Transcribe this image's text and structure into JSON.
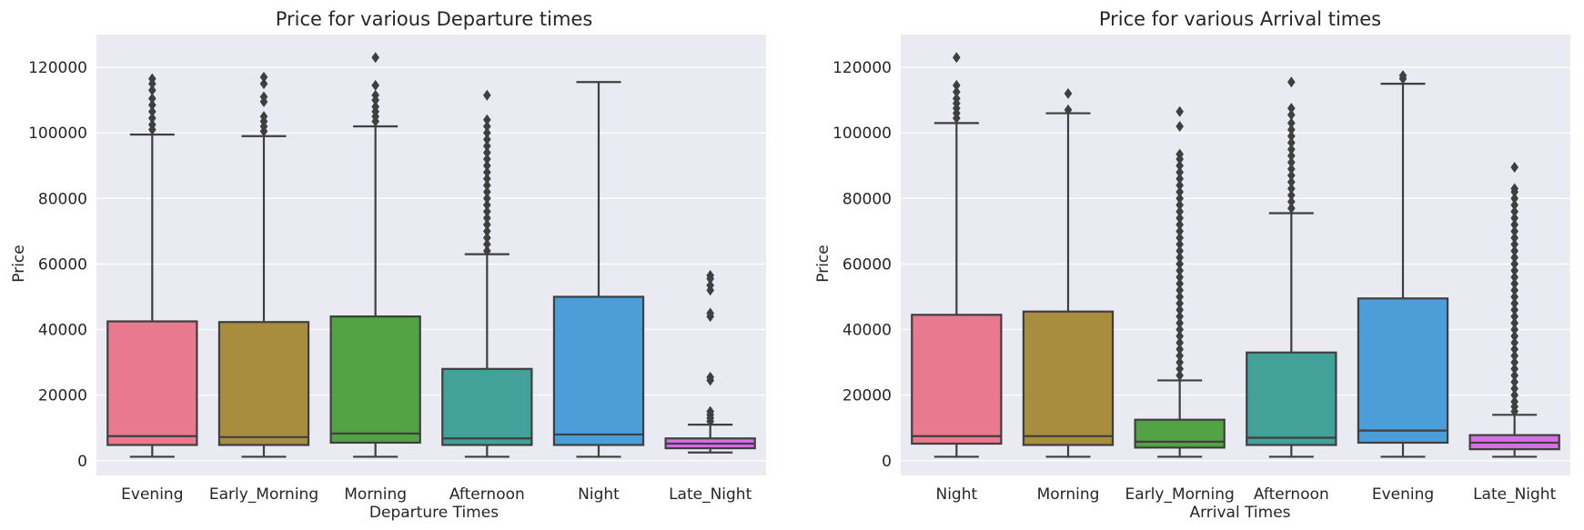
{
  "chart_data": [
    {
      "type": "box",
      "title": "Price for various Departure times",
      "xlabel": "Departure Times",
      "ylabel": "Price",
      "ylim": [
        -4500,
        130000
      ],
      "yticks": [
        0,
        20000,
        40000,
        60000,
        80000,
        100000,
        120000
      ],
      "grid": true,
      "categories": [
        "Evening",
        "Early_Morning",
        "Morning",
        "Afternoon",
        "Night",
        "Late_Night"
      ],
      "colors": [
        "#e8798e",
        "#a88d3e",
        "#52a343",
        "#42a199",
        "#4c9ed8",
        "#d56fe3"
      ],
      "boxes": [
        {
          "whislo": 1200,
          "q1": 4800,
          "med": 7500,
          "q3": 42500,
          "whishi": 99500,
          "fliers": [
            101000,
            102500,
            104500,
            106500,
            108500,
            110500,
            113000,
            115000,
            116500
          ]
        },
        {
          "whislo": 1200,
          "q1": 4800,
          "med": 7200,
          "q3": 42300,
          "whishi": 99000,
          "fliers": [
            100500,
            102000,
            103500,
            105000,
            109500,
            111000,
            115000,
            117000
          ]
        },
        {
          "whislo": 1200,
          "q1": 5500,
          "med": 8300,
          "q3": 44000,
          "whishi": 102000,
          "fliers": [
            103500,
            105000,
            106500,
            108000,
            110000,
            111500,
            114500,
            123000
          ]
        },
        {
          "whislo": 1200,
          "q1": 4800,
          "med": 6800,
          "q3": 28000,
          "whishi": 63000,
          "fliers": [
            64000,
            66000,
            68000,
            70000,
            72000,
            74000,
            76000,
            78000,
            80000,
            82000,
            84000,
            86000,
            88000,
            90000,
            92000,
            94000,
            96000,
            98000,
            100000,
            102000,
            104000,
            111500
          ]
        },
        {
          "whislo": 1200,
          "q1": 4800,
          "med": 8000,
          "q3": 50000,
          "whishi": 115500,
          "fliers": []
        },
        {
          "whislo": 2500,
          "q1": 3800,
          "med": 5200,
          "q3": 6800,
          "whishi": 11000,
          "fliers": [
            12000,
            13000,
            14000,
            15000,
            24500,
            25500,
            44000,
            45000,
            52000,
            53500,
            55500,
            56500
          ]
        }
      ]
    },
    {
      "type": "box",
      "title": "Price for various Arrival times",
      "xlabel": "Arrival Times",
      "ylabel": "Price",
      "ylim": [
        -4500,
        130000
      ],
      "yticks": [
        0,
        20000,
        40000,
        60000,
        80000,
        100000,
        120000
      ],
      "grid": true,
      "categories": [
        "Night",
        "Morning",
        "Early_Morning",
        "Afternoon",
        "Evening",
        "Late_Night"
      ],
      "colors": [
        "#e8798e",
        "#a88d3e",
        "#52a343",
        "#42a199",
        "#4c9ed8",
        "#d56fe3"
      ],
      "boxes": [
        {
          "whislo": 1200,
          "q1": 5200,
          "med": 7500,
          "q3": 44500,
          "whishi": 103000,
          "fliers": [
            104500,
            106000,
            107500,
            109000,
            110500,
            112500,
            114500,
            123000
          ]
        },
        {
          "whislo": 1200,
          "q1": 4800,
          "med": 7500,
          "q3": 45500,
          "whishi": 106000,
          "fliers": [
            107000,
            112000
          ]
        },
        {
          "whislo": 1200,
          "q1": 4000,
          "med": 5800,
          "q3": 12500,
          "whishi": 24500,
          "fliers": [
            26000,
            28000,
            30000,
            32000,
            34000,
            36000,
            38000,
            40000,
            42000,
            44000,
            46000,
            48000,
            50000,
            52000,
            54000,
            56000,
            58000,
            60000,
            62000,
            64000,
            66000,
            68000,
            70000,
            72000,
            74000,
            76000,
            78000,
            80000,
            82000,
            84000,
            86000,
            88000,
            90000,
            92000,
            93500,
            102000,
            106500
          ]
        },
        {
          "whislo": 1200,
          "q1": 4800,
          "med": 7000,
          "q3": 33000,
          "whishi": 75500,
          "fliers": [
            77000,
            79000,
            81000,
            83000,
            85000,
            87000,
            89000,
            91000,
            93000,
            95000,
            97000,
            99000,
            101000,
            103000,
            105500,
            107500,
            115500
          ]
        },
        {
          "whislo": 1200,
          "q1": 5500,
          "med": 9200,
          "q3": 49500,
          "whishi": 115000,
          "fliers": [
            116500,
            117500
          ]
        },
        {
          "whislo": 1200,
          "q1": 3500,
          "med": 5500,
          "q3": 7800,
          "whishi": 14000,
          "fliers": [
            15000,
            16500,
            18000,
            20000,
            22000,
            24000,
            26000,
            28000,
            30000,
            32000,
            34000,
            36000,
            38000,
            40000,
            42000,
            44000,
            46000,
            48000,
            50000,
            52000,
            54000,
            56000,
            58000,
            60000,
            62000,
            64000,
            66000,
            68000,
            70000,
            72000,
            74000,
            76000,
            78000,
            80000,
            82000,
            83000,
            89500
          ]
        }
      ]
    }
  ]
}
